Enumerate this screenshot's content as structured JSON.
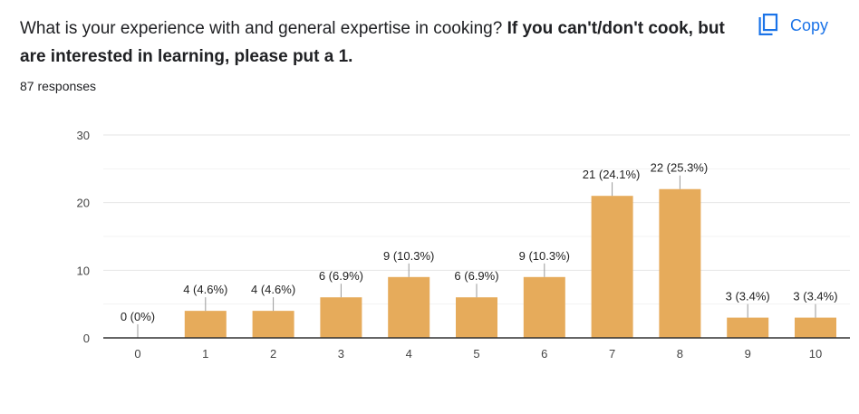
{
  "question": {
    "text_regular": "What is your experience with and general expertise in cooking?",
    "text_bold": "If you can't/don't cook, but are interested in learning, please put a 1.",
    "responses": "87 responses"
  },
  "copy_button": {
    "label": "Copy",
    "icon": "copy-icon",
    "color": "#1a73e8"
  },
  "chart_data": {
    "type": "bar",
    "categories": [
      "0",
      "1",
      "2",
      "3",
      "4",
      "5",
      "6",
      "7",
      "8",
      "9",
      "10"
    ],
    "values": [
      0,
      4,
      4,
      6,
      9,
      6,
      9,
      21,
      22,
      3,
      3
    ],
    "data_labels": [
      "0 (0%)",
      "4 (4.6%)",
      "4 (4.6%)",
      "6 (6.9%)",
      "9 (10.3%)",
      "6 (6.9%)",
      "9 (10.3%)",
      "21 (24.1%)",
      "22 (25.3%)",
      "3 (3.4%)",
      "3 (3.4%)"
    ],
    "ylim": [
      0,
      30
    ],
    "yticks": [
      0,
      10,
      20,
      30
    ],
    "grid": true,
    "bar_color": "#e6ab5b"
  }
}
